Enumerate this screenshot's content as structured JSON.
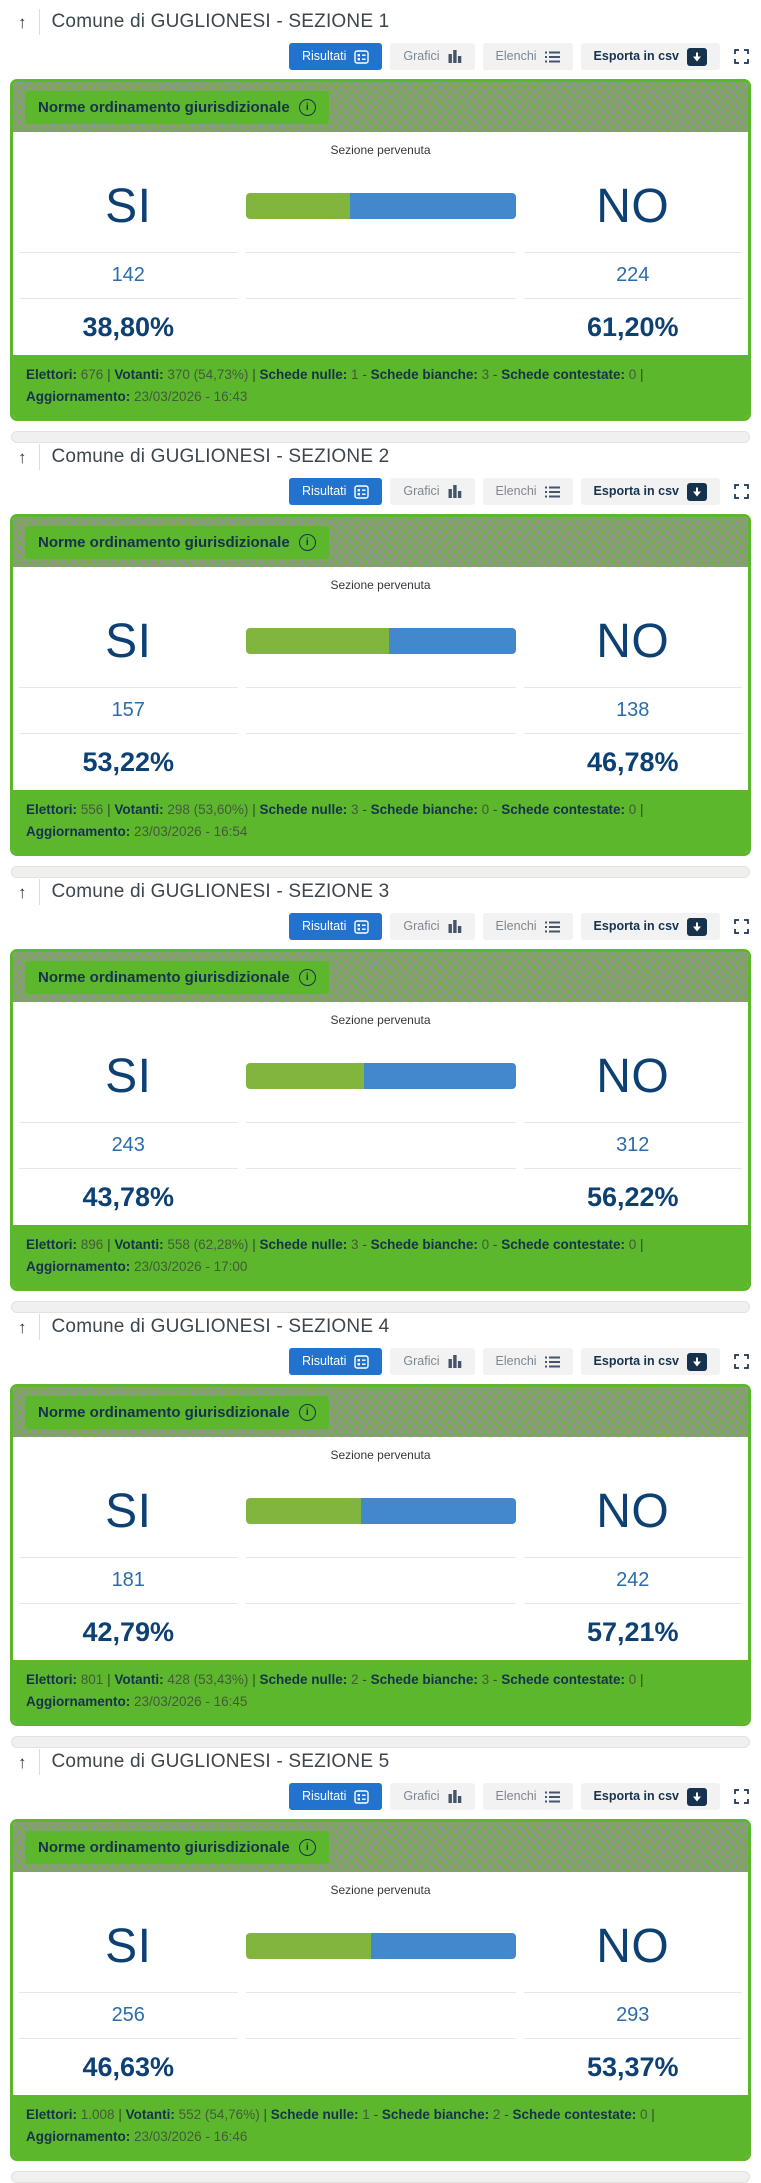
{
  "icons": {
    "back_to_top": "↑"
  },
  "toolbar": {
    "risultati_label": "Risultati",
    "grafici_label": "Grafici",
    "elenchi_label": "Elenchi",
    "esporta_label": "Esporta in csv"
  },
  "card": {
    "badge_label": "Norme ordinamento giurisdizionale",
    "status_label": "Sezione pervenuta",
    "si_label": "SI",
    "no_label": "NO"
  },
  "footer_labels": {
    "elettori": "Elettori:",
    "votanti": "Votanti:",
    "schede_nulle": "Schede nulle:",
    "schede_bianche": "Schede bianche:",
    "schede_contestate": "Schede contestate:",
    "aggiornamento": "Aggiornamento:",
    "sep_pipe": "|",
    "sep_dash": "-"
  },
  "colors": {
    "green": "#5cb72c",
    "bar_green": "#82b53e",
    "bar_blue": "#4189cc",
    "primary_blue": "#2173cd",
    "navy": "#17324d",
    "result_navy": "#0e4173"
  },
  "sections": [
    {
      "title": "Comune di GUGLIONESI - SEZIONE 1",
      "si_votes": "142",
      "no_votes": "224",
      "si_pct": "38,80%",
      "no_pct": "61,20%",
      "si_pct_value": 38.8,
      "footer": {
        "elettori": "676",
        "votanti": "370 (54,73%)",
        "nulle": "1",
        "bianche": "3",
        "contestate": "0",
        "aggiornamento": "23/03/2026 - 16:43"
      }
    },
    {
      "title": "Comune di GUGLIONESI - SEZIONE 2",
      "si_votes": "157",
      "no_votes": "138",
      "si_pct": "53,22%",
      "no_pct": "46,78%",
      "si_pct_value": 53.22,
      "footer": {
        "elettori": "556",
        "votanti": "298 (53,60%)",
        "nulle": "3",
        "bianche": "0",
        "contestate": "0",
        "aggiornamento": "23/03/2026 - 16:54"
      }
    },
    {
      "title": "Comune di GUGLIONESI - SEZIONE 3",
      "si_votes": "243",
      "no_votes": "312",
      "si_pct": "43,78%",
      "no_pct": "56,22%",
      "si_pct_value": 43.78,
      "footer": {
        "elettori": "896",
        "votanti": "558 (62,28%)",
        "nulle": "3",
        "bianche": "0",
        "contestate": "0",
        "aggiornamento": "23/03/2026 - 17:00"
      }
    },
    {
      "title": "Comune di GUGLIONESI - SEZIONE 4",
      "si_votes": "181",
      "no_votes": "242",
      "si_pct": "42,79%",
      "no_pct": "57,21%",
      "si_pct_value": 42.79,
      "footer": {
        "elettori": "801",
        "votanti": "428 (53,43%)",
        "nulle": "2",
        "bianche": "3",
        "contestate": "0",
        "aggiornamento": "23/03/2026 - 16:45"
      }
    },
    {
      "title": "Comune di GUGLIONESI - SEZIONE 5",
      "si_votes": "256",
      "no_votes": "293",
      "si_pct": "46,63%",
      "no_pct": "53,37%",
      "si_pct_value": 46.63,
      "footer": {
        "elettori": "1.008",
        "votanti": "552 (54,76%)",
        "nulle": "1",
        "bianche": "2",
        "contestate": "0",
        "aggiornamento": "23/03/2026 - 16:46"
      }
    }
  ]
}
